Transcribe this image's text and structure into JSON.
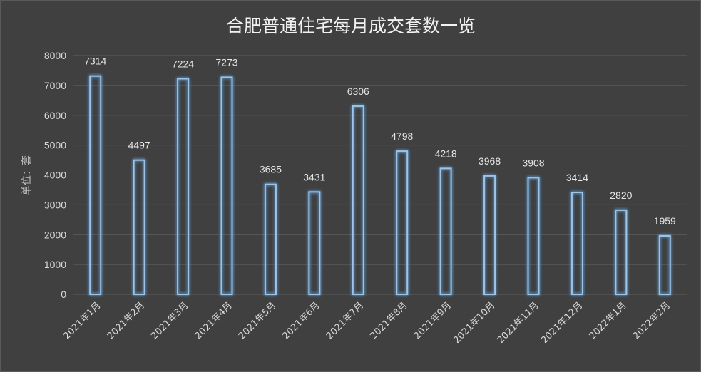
{
  "chart_data": {
    "type": "bar",
    "title": "合肥普通住宅每月成交套数一览",
    "xlabel": "",
    "ylabel": "单位：套",
    "ylim": [
      0,
      8000
    ],
    "yticks": [
      0,
      1000,
      2000,
      3000,
      4000,
      5000,
      6000,
      7000,
      8000
    ],
    "grid": true,
    "categories": [
      "2021年1月",
      "2021年2月",
      "2021年3月",
      "2021年4月",
      "2021年5月",
      "2021年6月",
      "2021年7月",
      "2021年8月",
      "2021年9月",
      "2021年10月",
      "2021年11月",
      "2021年12月",
      "2022年1月",
      "2022年2月"
    ],
    "values": [
      7314,
      4497,
      7224,
      7273,
      3685,
      3431,
      6306,
      4798,
      4218,
      3968,
      3908,
      3414,
      2820,
      1959
    ],
    "colors": {
      "background": "#404040",
      "bar_outline": "#9dc3e6",
      "bar_glow": "#5b9bd5",
      "gridline": "#5e5e5e",
      "text": "#d9d9d9"
    }
  }
}
